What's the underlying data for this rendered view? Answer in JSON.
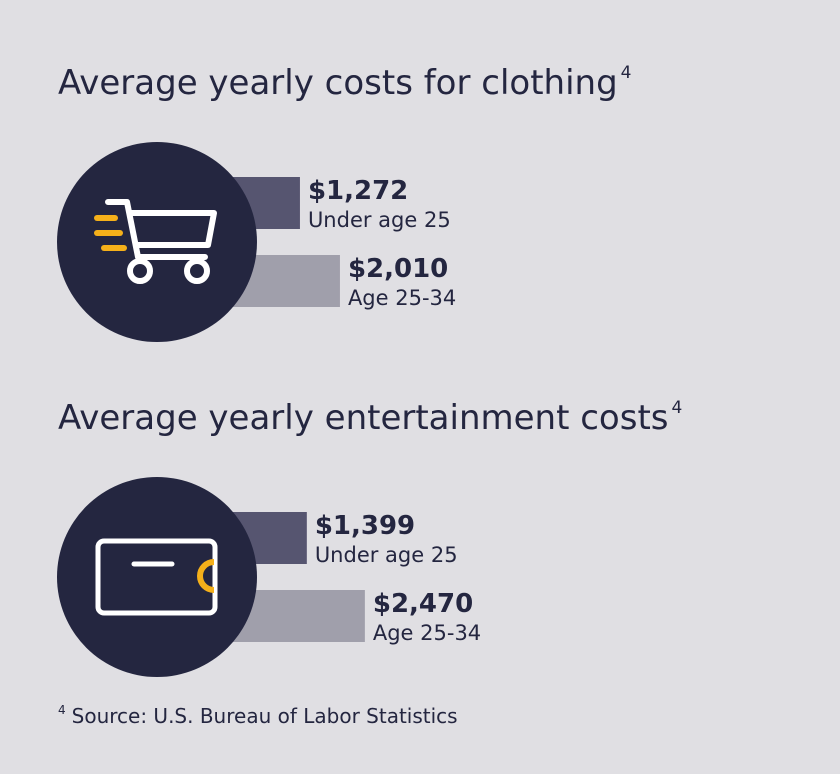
{
  "chart_data": [
    {
      "type": "bar",
      "title": "Average yearly costs for clothing",
      "title_marker": "4",
      "categories": [
        "Under age 25",
        "Age 25-34"
      ],
      "values": [
        1272,
        2010
      ],
      "value_labels": [
        "$1,272",
        "$2,010"
      ],
      "colors": [
        "#565570",
        "#a09fab"
      ]
    },
    {
      "type": "bar",
      "title": "Average yearly entertainment costs",
      "title_marker": "4",
      "categories": [
        "Under age 25",
        "Age 25-34"
      ],
      "values": [
        1399,
        2470
      ],
      "value_labels": [
        "$1,399",
        "$2,470"
      ],
      "colors": [
        "#565570",
        "#a09fab"
      ]
    }
  ],
  "footnote": {
    "marker": "4",
    "text": "Source: U.S. Bureau of Labor Statistics"
  }
}
